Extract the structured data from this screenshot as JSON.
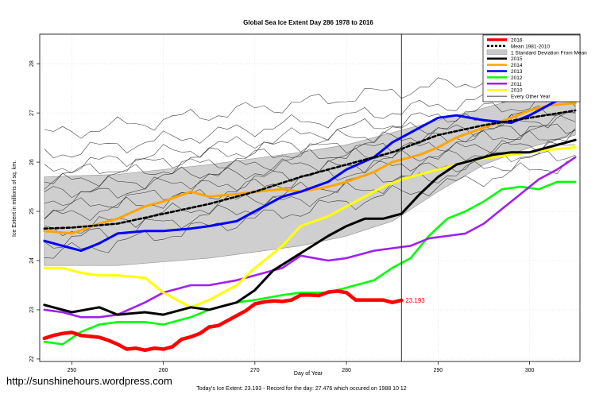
{
  "chart_data": {
    "type": "line",
    "title": "Global Sea Ice Extent Day 286 1978 to 2016",
    "xlabel": "Day of Year",
    "ylabel": "Ice Extent in millions of sq. km.",
    "xlim": [
      246.5,
      305.5
    ],
    "ylim": [
      21.95,
      28.6
    ],
    "x_ticks": [
      250,
      260,
      270,
      280,
      290,
      300
    ],
    "y_ticks": [
      22,
      23,
      24,
      25,
      26,
      27,
      28
    ],
    "current_day": 286,
    "end_label": "23.193",
    "legend": {
      "position": "top-right",
      "entries": [
        {
          "label": "2016",
          "color": "#ff0000",
          "style": "solid-thick"
        },
        {
          "label": "Mean 1981-2010",
          "color": "#000000",
          "style": "dashed"
        },
        {
          "label": "1 Standard Deviation From Mean",
          "color": "#c8c8c8",
          "style": "band"
        },
        {
          "label": "2015",
          "color": "#000000",
          "style": "solid-thick"
        },
        {
          "label": "2014",
          "color": "#ffa500",
          "style": "solid-thick"
        },
        {
          "label": "2013",
          "color": "#0000ff",
          "style": "solid-thick"
        },
        {
          "label": "2012",
          "color": "#00ff00",
          "style": "solid-thick"
        },
        {
          "label": "2011",
          "color": "#a020f0",
          "style": "solid-thick"
        },
        {
          "label": "2010",
          "color": "#ffff00",
          "style": "solid-thick"
        },
        {
          "label": "Every Other Year",
          "color": "#000000",
          "style": "solid-thin"
        }
      ]
    },
    "std_band": {
      "x": [
        247,
        255,
        265,
        275,
        280,
        285,
        290,
        295,
        300,
        305
      ],
      "upper": [
        25.7,
        25.75,
        25.95,
        26.2,
        26.35,
        26.6,
        26.85,
        27.1,
        27.35,
        27.5
      ],
      "lower": [
        23.9,
        23.9,
        24.05,
        24.3,
        24.5,
        24.8,
        25.4,
        25.95,
        26.3,
        26.55
      ]
    },
    "series": [
      {
        "name": "Mean 1981-2010",
        "color": "#000000",
        "width": 2.6,
        "dash": "4,3",
        "x": [
          247,
          250,
          255,
          260,
          265,
          270,
          275,
          280,
          285,
          290,
          295,
          300,
          305
        ],
        "y": [
          24.65,
          24.67,
          24.75,
          24.95,
          25.15,
          25.4,
          25.7,
          25.95,
          26.2,
          26.55,
          26.75,
          26.9,
          27.05
        ]
      },
      {
        "name": "2016",
        "color": "#ff0000",
        "width": 4.5,
        "x": [
          247,
          248,
          249,
          250,
          251,
          252,
          253,
          254,
          255,
          256,
          257,
          258,
          259,
          260,
          261,
          262,
          263,
          264,
          265,
          266,
          267,
          268,
          269,
          270,
          271,
          272,
          273,
          274,
          275,
          276,
          277,
          278,
          279,
          280,
          281,
          282,
          283,
          284,
          285,
          286
        ],
        "y": [
          22.42,
          22.48,
          22.52,
          22.54,
          22.48,
          22.46,
          22.44,
          22.38,
          22.3,
          22.2,
          22.22,
          22.18,
          22.22,
          22.2,
          22.25,
          22.4,
          22.45,
          22.52,
          22.65,
          22.68,
          22.78,
          22.88,
          22.98,
          23.12,
          23.16,
          23.18,
          23.17,
          23.2,
          23.3,
          23.3,
          23.29,
          23.36,
          23.38,
          23.35,
          23.2,
          23.2,
          23.2,
          23.2,
          23.15,
          23.193
        ]
      },
      {
        "name": "2015",
        "color": "#000000",
        "width": 3,
        "x": [
          247,
          250,
          253,
          255,
          258,
          260,
          263,
          265,
          268,
          270,
          272,
          275,
          278,
          280,
          282,
          284,
          286,
          288,
          290,
          292,
          294,
          296,
          298,
          300,
          302,
          304,
          305
        ],
        "y": [
          23.1,
          22.95,
          23.05,
          22.9,
          22.95,
          22.9,
          23.05,
          23.0,
          23.15,
          23.4,
          23.8,
          24.15,
          24.5,
          24.7,
          24.85,
          24.85,
          24.95,
          25.35,
          25.7,
          25.95,
          26.05,
          26.15,
          26.2,
          26.2,
          26.3,
          26.4,
          26.45
        ]
      },
      {
        "name": "2014",
        "color": "#ffa500",
        "width": 3,
        "x": [
          247,
          250,
          253,
          255,
          258,
          260,
          263,
          265,
          268,
          270,
          273,
          275,
          278,
          280,
          283,
          285,
          288,
          290,
          292,
          295,
          298,
          300,
          302,
          305
        ],
        "y": [
          24.6,
          24.55,
          24.75,
          24.85,
          25.1,
          25.2,
          25.4,
          25.3,
          25.35,
          25.4,
          25.45,
          25.4,
          25.5,
          25.6,
          25.8,
          26.0,
          26.15,
          26.3,
          26.5,
          26.7,
          26.9,
          27.05,
          27.15,
          27.2
        ]
      },
      {
        "name": "2013",
        "color": "#0000ff",
        "width": 3,
        "x": [
          247,
          249,
          251,
          253,
          255,
          258,
          260,
          263,
          265,
          268,
          270,
          273,
          275,
          278,
          280,
          283,
          285,
          288,
          290,
          292,
          295,
          298,
          300,
          302,
          305
        ],
        "y": [
          24.4,
          24.3,
          24.2,
          24.35,
          24.55,
          24.6,
          24.6,
          24.65,
          24.7,
          24.8,
          25.0,
          25.3,
          25.4,
          25.6,
          25.85,
          26.1,
          26.4,
          26.7,
          26.9,
          26.95,
          26.85,
          26.8,
          26.95,
          27.15,
          27.45
        ]
      },
      {
        "name": "2012",
        "color": "#00ff00",
        "width": 2.6,
        "x": [
          247,
          249,
          251,
          253,
          255,
          258,
          260,
          263,
          265,
          268,
          270,
          273,
          275,
          278,
          280,
          283,
          285,
          287,
          289,
          291,
          293,
          295,
          297,
          299,
          301,
          303,
          305
        ],
        "y": [
          22.35,
          22.3,
          22.55,
          22.7,
          22.75,
          22.75,
          22.7,
          22.85,
          23.0,
          23.15,
          23.2,
          23.3,
          23.35,
          23.35,
          23.45,
          23.6,
          23.85,
          24.05,
          24.5,
          24.85,
          25.0,
          25.2,
          25.45,
          25.5,
          25.45,
          25.6,
          25.6
        ]
      },
      {
        "name": "2011",
        "color": "#a020f0",
        "width": 2.6,
        "x": [
          247,
          249,
          251,
          253,
          255,
          258,
          260,
          263,
          265,
          268,
          270,
          273,
          275,
          278,
          280,
          283,
          285,
          287,
          289,
          291,
          293,
          295,
          297,
          299,
          301,
          303,
          305
        ],
        "y": [
          23.0,
          22.95,
          22.85,
          22.85,
          22.9,
          23.15,
          23.35,
          23.5,
          23.5,
          23.6,
          23.7,
          23.85,
          24.1,
          24.0,
          24.05,
          24.2,
          24.25,
          24.3,
          24.45,
          24.5,
          24.55,
          24.75,
          25.05,
          25.35,
          25.65,
          25.85,
          26.1
        ]
      },
      {
        "name": "2010",
        "color": "#ffff00",
        "width": 3,
        "x": [
          247,
          249,
          251,
          253,
          255,
          258,
          260,
          262,
          263,
          265,
          268,
          270,
          273,
          275,
          278,
          280,
          282,
          284,
          286,
          288,
          290,
          292,
          294,
          296,
          298,
          300,
          302,
          305
        ],
        "y": [
          23.85,
          23.85,
          23.75,
          23.7,
          23.7,
          23.65,
          23.35,
          23.15,
          23.05,
          23.2,
          23.5,
          23.85,
          24.3,
          24.7,
          24.9,
          25.1,
          25.3,
          25.5,
          25.65,
          25.75,
          25.85,
          25.95,
          26.05,
          26.1,
          26.15,
          26.2,
          26.25,
          26.3
        ]
      }
    ],
    "other_years_baselines": [
      {
        "start": 26.15,
        "end": 27.5
      },
      {
        "start": 25.7,
        "end": 27.1
      },
      {
        "start": 25.55,
        "end": 26.95
      },
      {
        "start": 25.35,
        "end": 26.85
      },
      {
        "start": 25.2,
        "end": 26.75
      },
      {
        "start": 25.0,
        "end": 26.6
      },
      {
        "start": 24.85,
        "end": 26.5
      },
      {
        "start": 24.55,
        "end": 26.35
      },
      {
        "start": 24.35,
        "end": 26.2
      },
      {
        "start": 24.1,
        "end": 26.0
      },
      {
        "start": 26.55,
        "end": 27.9
      },
      {
        "start": 25.85,
        "end": 27.3
      }
    ]
  },
  "watermark": "http://sunshinehours.wordpress.com",
  "footer": "Today's Ice Extent: 23.193  - Record for the day: 27.476 which occured on 1988 10 12"
}
